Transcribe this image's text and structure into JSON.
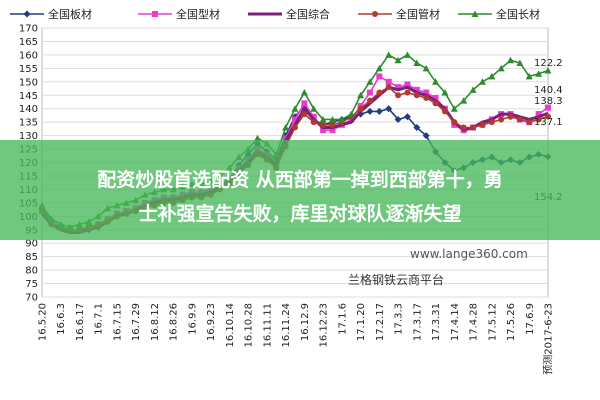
{
  "chart_data": {
    "type": "line",
    "categories": [
      "16.5.20",
      null,
      "16.6.3",
      null,
      "16.6.17",
      null,
      "16.7.1",
      null,
      "16.7.15",
      null,
      "16.7.29",
      null,
      "16.8.12",
      null,
      "16.8.26",
      null,
      "16.9.9",
      null,
      "16.9.23",
      null,
      "16.10.14",
      null,
      "16.10.28",
      null,
      "16.11.11",
      null,
      "16.11.24",
      null,
      "16.12.9",
      null,
      "16.12.23",
      null,
      "17.1.6",
      null,
      "17.1.20",
      null,
      "17.2.17",
      null,
      "17.3.3",
      null,
      "17.3.17",
      null,
      "17.3.31",
      null,
      "17.4.14",
      null,
      "17.4.28",
      null,
      "17.5.12",
      null,
      "17.5.26",
      null,
      "17.6.9",
      null,
      "预测2017-6-23"
    ],
    "series": [
      {
        "name": "全国板材",
        "color": "#1f3e7a",
        "marker": "diamond",
        "values": [
          103,
          98,
          96,
          95,
          95,
          95,
          96,
          98,
          100,
          101,
          102,
          104,
          106,
          107,
          107,
          108,
          109,
          109,
          110,
          112,
          114,
          119,
          123,
          127,
          124,
          121,
          130,
          137,
          141,
          136,
          134,
          135,
          136,
          137,
          138,
          139,
          139,
          140,
          136,
          137,
          133,
          130,
          124,
          120,
          117,
          118,
          120,
          121,
          122,
          120,
          121,
          120,
          122,
          123,
          122.2
        ]
      },
      {
        "name": "全国型材",
        "color": "#e83ccf",
        "marker": "square",
        "values": [
          102,
          98,
          96,
          95,
          95,
          96,
          97,
          99,
          101,
          102,
          103,
          105,
          106,
          107,
          107,
          108,
          109,
          109,
          110,
          112,
          114,
          118,
          121,
          125,
          123,
          120,
          129,
          136,
          142,
          137,
          132,
          132,
          134,
          136,
          141,
          146,
          152,
          150,
          148,
          149,
          147,
          146,
          144,
          140,
          134,
          132,
          133,
          134,
          136,
          138,
          138,
          136,
          135,
          138,
          140.4
        ]
      },
      {
        "name": "全国综合",
        "color": "#7a1f7a",
        "marker": "none",
        "values": [
          101,
          97,
          95,
          94,
          94,
          95,
          96,
          98,
          100,
          101,
          102,
          104,
          105,
          106,
          106,
          107,
          108,
          108,
          109,
          111,
          113,
          117,
          120,
          124,
          122,
          119,
          128,
          134,
          140,
          136,
          133,
          133,
          134,
          135,
          139,
          142,
          145,
          148,
          147,
          148,
          146,
          145,
          143,
          140,
          135,
          132,
          133,
          135,
          136,
          138,
          138,
          137,
          136,
          137,
          138.3
        ]
      },
      {
        "name": "全国管材",
        "color": "#b03a2e",
        "marker": "circle",
        "values": [
          102,
          97,
          96,
          95,
          95,
          96,
          97,
          98,
          100,
          101,
          102,
          103,
          104,
          105,
          105,
          106,
          107,
          107,
          108,
          110,
          112,
          116,
          119,
          123,
          121,
          118,
          126,
          133,
          138,
          135,
          134,
          134,
          135,
          137,
          140,
          143,
          146,
          148,
          145,
          146,
          145,
          144,
          142,
          139,
          135,
          133,
          133,
          134,
          135,
          136,
          137,
          136,
          135,
          136,
          137.1
        ]
      },
      {
        "name": "全国长材",
        "color": "#2e8b2e",
        "marker": "triangle",
        "values": [
          104,
          99,
          97,
          96,
          97,
          98,
          100,
          103,
          104,
          105,
          106,
          108,
          109,
          110,
          110,
          111,
          112,
          112,
          113,
          115,
          118,
          122,
          125,
          129,
          127,
          123,
          133,
          140,
          146,
          140,
          136,
          136,
          136,
          138,
          145,
          150,
          155,
          160,
          158,
          160,
          157,
          155,
          150,
          146,
          140,
          143,
          147,
          150,
          152,
          155,
          158,
          157,
          152,
          153,
          154.2
        ]
      }
    ],
    "ylim": [
      70,
      170
    ],
    "yticks": [
      70,
      75,
      80,
      85,
      90,
      95,
      100,
      105,
      110,
      115,
      120,
      125,
      130,
      135,
      140,
      145,
      150,
      155,
      160,
      165,
      170
    ],
    "grid": true,
    "legend": "top"
  },
  "watermark": [
    "www.lange360.com",
    "兰格钢铁云商平台"
  ],
  "overlay": {
    "lines": [
      "配资炒股首选配资 从西部第一掉到西部第十，勇",
      "士补强宣告失败，库里对球队逐渐失望"
    ]
  }
}
